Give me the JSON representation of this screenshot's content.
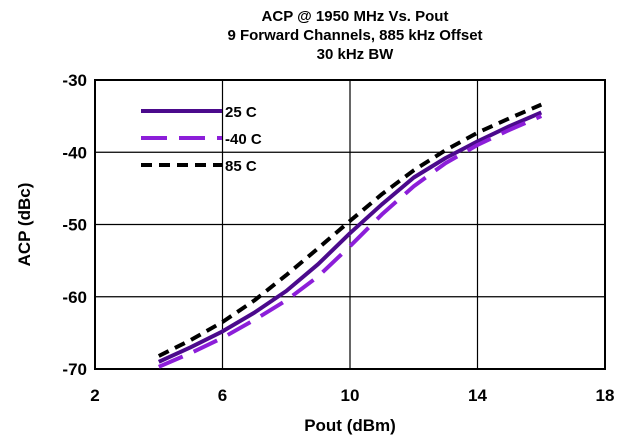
{
  "chart_data": {
    "type": "line",
    "title": [
      "ACP @ 1950 MHz Vs. Pout",
      "9 Forward Channels, 885 kHz Offset",
      "30 kHz BW"
    ],
    "xlabel": "Pout (dBm)",
    "ylabel": "ACP (dBc)",
    "xlim": [
      2,
      18
    ],
    "ylim": [
      -70,
      -30
    ],
    "xticks": [
      2,
      6,
      10,
      14,
      18
    ],
    "yticks": [
      -30,
      -40,
      -50,
      -60,
      -70
    ],
    "grid": true,
    "legend_position": "top-left",
    "series": [
      {
        "name": "25 C",
        "color": "#4b0a8c",
        "style": "solid",
        "x": [
          4,
          5,
          6,
          7,
          8,
          9,
          10,
          11,
          12,
          13,
          14,
          15,
          16
        ],
        "y": [
          -69.0,
          -67.0,
          -64.8,
          -62.2,
          -59.2,
          -55.5,
          -51.2,
          -47.2,
          -43.5,
          -40.8,
          -38.5,
          -36.4,
          -34.5
        ]
      },
      {
        "name": "-40 C",
        "color": "#8c1ed9",
        "style": "dashed",
        "x": [
          4,
          5,
          6,
          7,
          8,
          9,
          10,
          11,
          12,
          13,
          14,
          15,
          16
        ],
        "y": [
          -69.7,
          -67.8,
          -65.7,
          -63.2,
          -60.5,
          -57.2,
          -53.0,
          -48.6,
          -44.7,
          -41.5,
          -39.0,
          -36.9,
          -35.0
        ]
      },
      {
        "name": "85 C",
        "color": "#000000",
        "style": "short-dashed",
        "x": [
          4,
          5,
          6,
          7,
          8,
          9,
          10,
          11,
          12,
          13,
          14,
          15,
          16
        ],
        "y": [
          -68.2,
          -66.0,
          -63.5,
          -60.5,
          -57.0,
          -53.3,
          -49.5,
          -45.8,
          -42.5,
          -39.7,
          -37.3,
          -35.3,
          -33.4
        ]
      }
    ]
  }
}
